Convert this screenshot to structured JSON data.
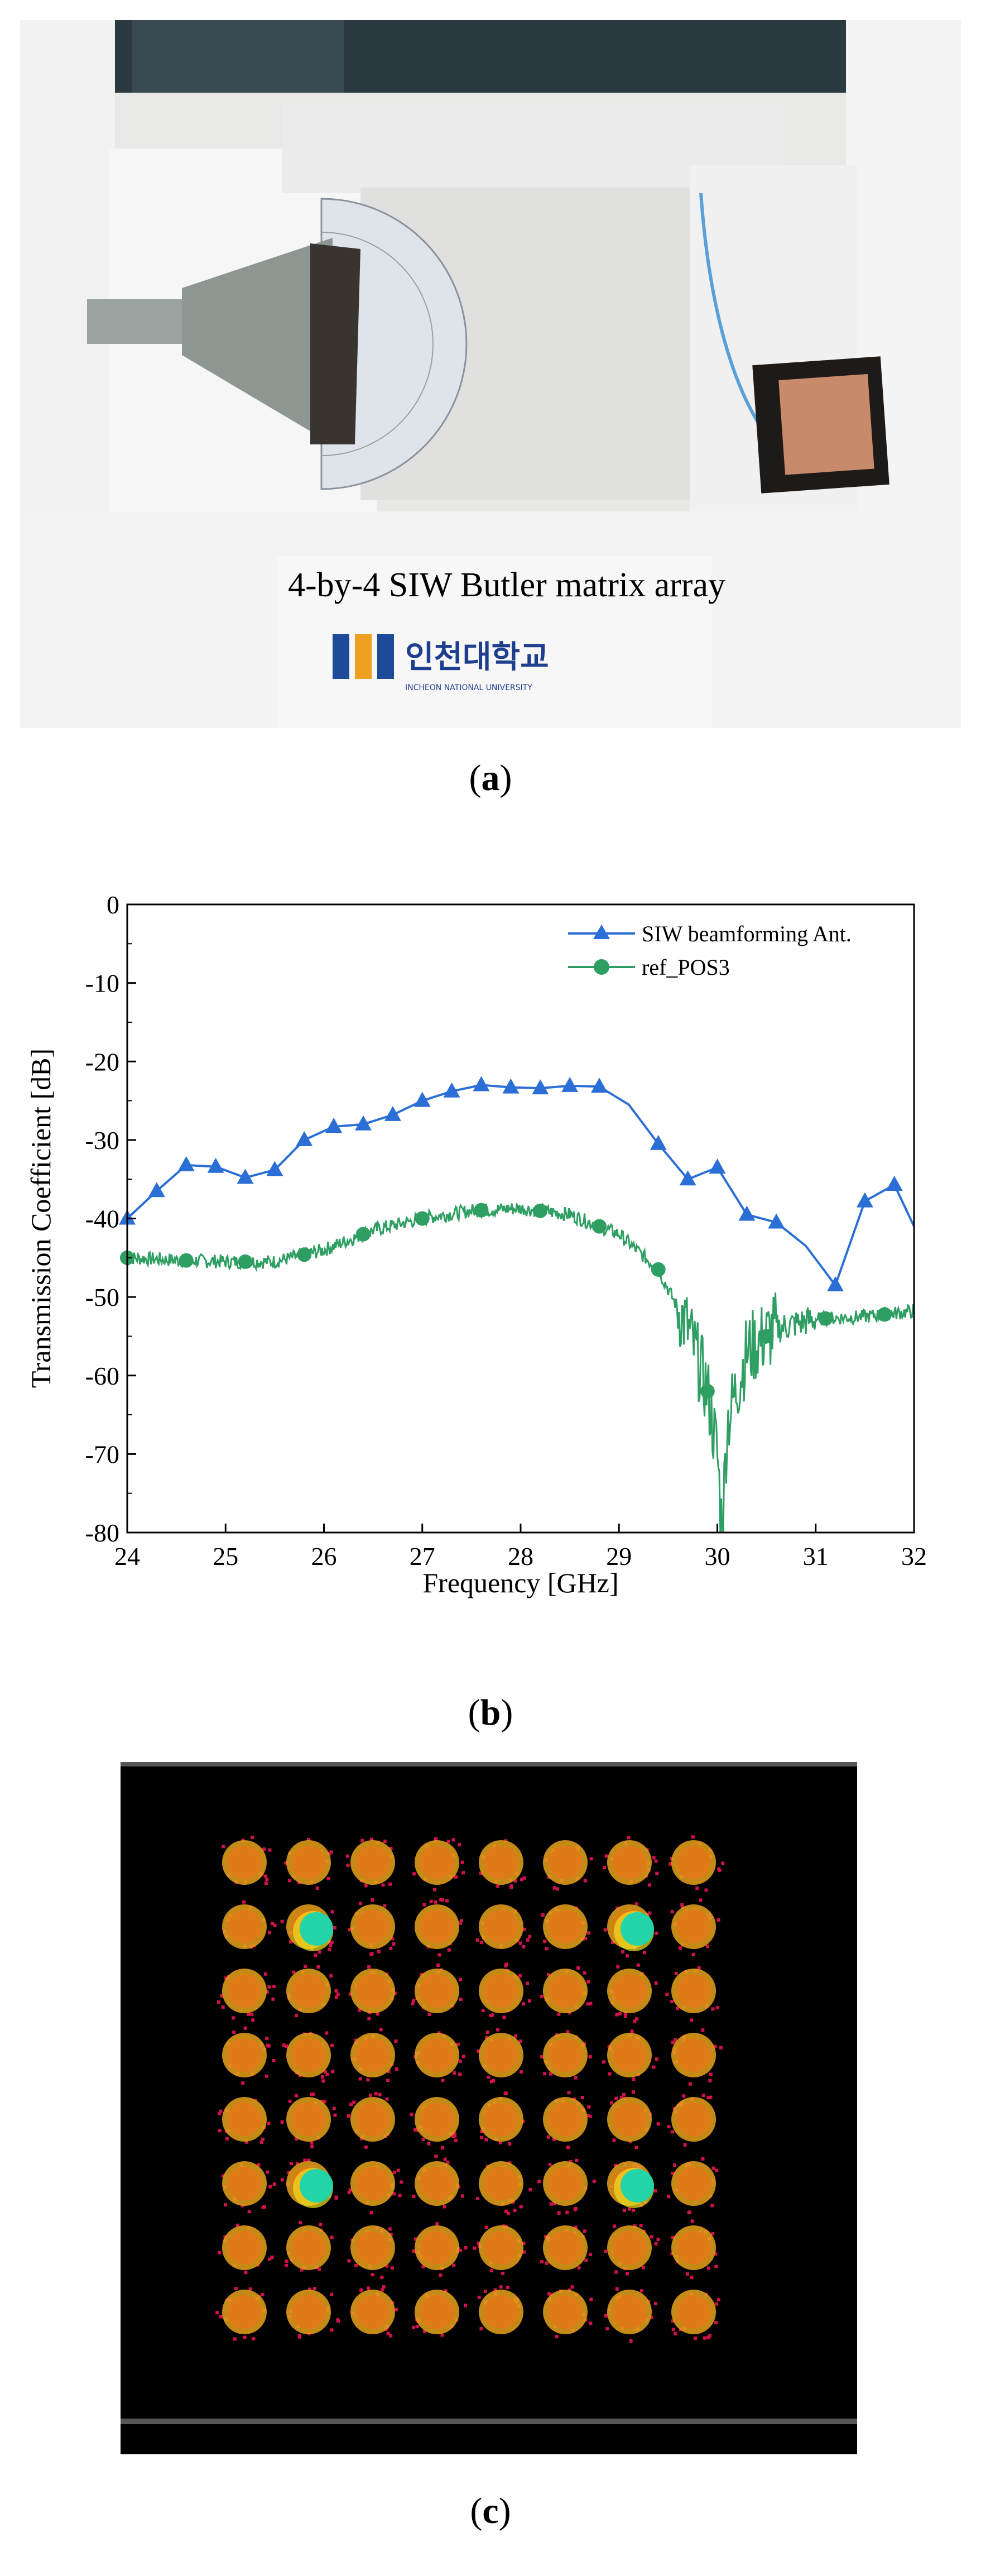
{
  "figure": {
    "panel_a": {
      "photo_label": "4-by-4 SIW Butler matrix array",
      "logo_text": "인천대학교",
      "logo_subtext": "INCHEON NATIONAL UNIVERSITY",
      "caption_open": "(",
      "caption_letter": "a",
      "caption_close": ")"
    },
    "panel_b": {
      "caption_open": "(",
      "caption_letter": "b",
      "caption_close": ")"
    },
    "panel_c": {
      "caption_open": "(",
      "caption_letter": "c",
      "caption_close": ")",
      "grid_rows": 8,
      "grid_cols": 8,
      "highlighted_points": [
        [
          1,
          1
        ],
        [
          1,
          6
        ],
        [
          5,
          1
        ],
        [
          5,
          6
        ]
      ],
      "colors": {
        "background": "#000000",
        "cluster": "#e07a16",
        "halo": "#e8a21a",
        "outlier": "#d0124a",
        "highlight": "#22d4a8",
        "highlight_edge": "#f0e020"
      }
    }
  },
  "chart_data": {
    "type": "line",
    "xlabel": "Frequency [GHz]",
    "ylabel": "Transmission Coefficient [dB]",
    "xlim": [
      24,
      32
    ],
    "ylim": [
      -80,
      0
    ],
    "xticks": [
      "24",
      "25",
      "26",
      "27",
      "28",
      "29",
      "30",
      "31",
      "32"
    ],
    "yticks": [
      "0",
      "-10",
      "-20",
      "-30",
      "-40",
      "-50",
      "-60",
      "-70",
      "-80"
    ],
    "legend_position": "top-right",
    "series": [
      {
        "name": "SIW beamforming Ant.",
        "color": "#2b6fd6",
        "marker": "triangle",
        "x": [
          24.0,
          24.3,
          24.6,
          24.9,
          25.2,
          25.5,
          25.8,
          26.1,
          26.4,
          26.7,
          27.0,
          27.3,
          27.6,
          27.9,
          28.2,
          28.5,
          28.8,
          29.1,
          29.4,
          29.7,
          30.0,
          30.3,
          30.6,
          30.9,
          31.2,
          31.5,
          31.8,
          32.0
        ],
        "y": [
          -40.0,
          -36.5,
          -33.2,
          -33.4,
          -34.8,
          -33.8,
          -30.0,
          -28.3,
          -28.0,
          -26.8,
          -25.0,
          -23.8,
          -23.0,
          -23.3,
          -23.4,
          -23.1,
          -23.2,
          -25.5,
          -30.5,
          -35.0,
          -33.5,
          -39.5,
          -40.5,
          -43.5,
          -48.5,
          -37.8,
          -35.7,
          -41.0
        ],
        "markers_at": [
          24.0,
          24.3,
          24.6,
          24.9,
          25.2,
          25.5,
          25.8,
          26.1,
          26.4,
          26.7,
          27.0,
          27.3,
          27.6,
          27.9,
          28.2,
          28.5,
          28.8,
          29.4,
          29.7,
          30.0,
          30.3,
          30.6,
          31.2,
          31.5,
          31.8
        ]
      },
      {
        "name": "ref_POS3",
        "color": "#2e9e62",
        "marker": "circle",
        "x": [
          24.0,
          24.5,
          25.0,
          25.5,
          26.0,
          26.5,
          27.0,
          27.5,
          28.0,
          28.5,
          29.0,
          29.4,
          29.7,
          29.9,
          30.0,
          30.05,
          30.1,
          30.3,
          30.6,
          31.0,
          31.5,
          32.0
        ],
        "y": [
          -45.0,
          -45.3,
          -45.5,
          -45.5,
          -44.0,
          -41.5,
          -40.0,
          -39.0,
          -38.7,
          -39.5,
          -42.0,
          -46.5,
          -54.0,
          -62.0,
          -70.0,
          -80.0,
          -66.0,
          -57.0,
          -54.0,
          -52.8,
          -52.5,
          -51.8
        ],
        "markers_at": [
          24.0,
          24.6,
          25.2,
          25.8,
          26.4,
          27.0,
          27.6,
          28.2,
          28.8,
          29.4,
          29.9,
          30.5,
          31.1,
          31.7
        ]
      }
    ]
  }
}
